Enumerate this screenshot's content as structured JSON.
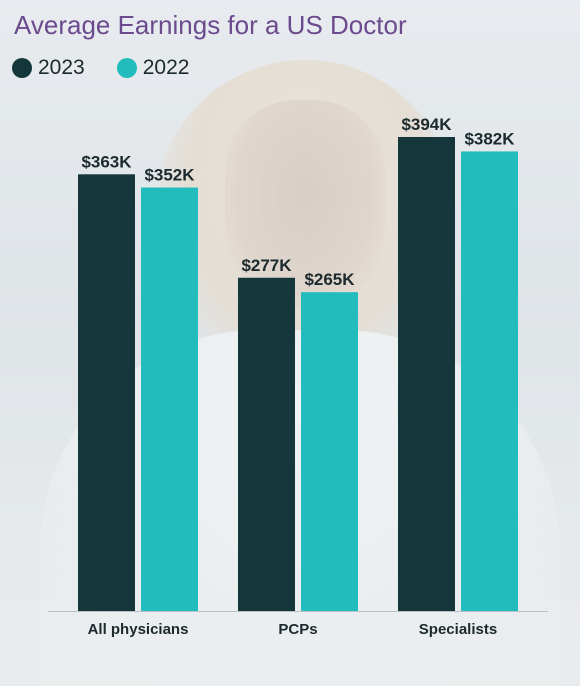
{
  "title": "Average Earnings for a US Doctor",
  "legend": [
    {
      "label": "2023",
      "color": "#15363b"
    },
    {
      "label": "2022",
      "color": "#22bcbc"
    }
  ],
  "chart_data": {
    "type": "bar",
    "title": "Average Earnings for a US Doctor",
    "categories": [
      "All physicians",
      "PCPs",
      "Specialists"
    ],
    "series": [
      {
        "name": "2023",
        "values": [
          363,
          277,
          394
        ],
        "labels": [
          "$363K",
          "$277K",
          "$394K"
        ],
        "color": "#15363b"
      },
      {
        "name": "2022",
        "values": [
          352,
          265,
          382
        ],
        "labels": [
          "$352K",
          "$265K",
          "$382K"
        ],
        "color": "#22bcbc"
      }
    ],
    "unit": "thousand USD",
    "ylim": [
      0,
      394
    ],
    "grid": false,
    "legend_position": "top-left"
  }
}
